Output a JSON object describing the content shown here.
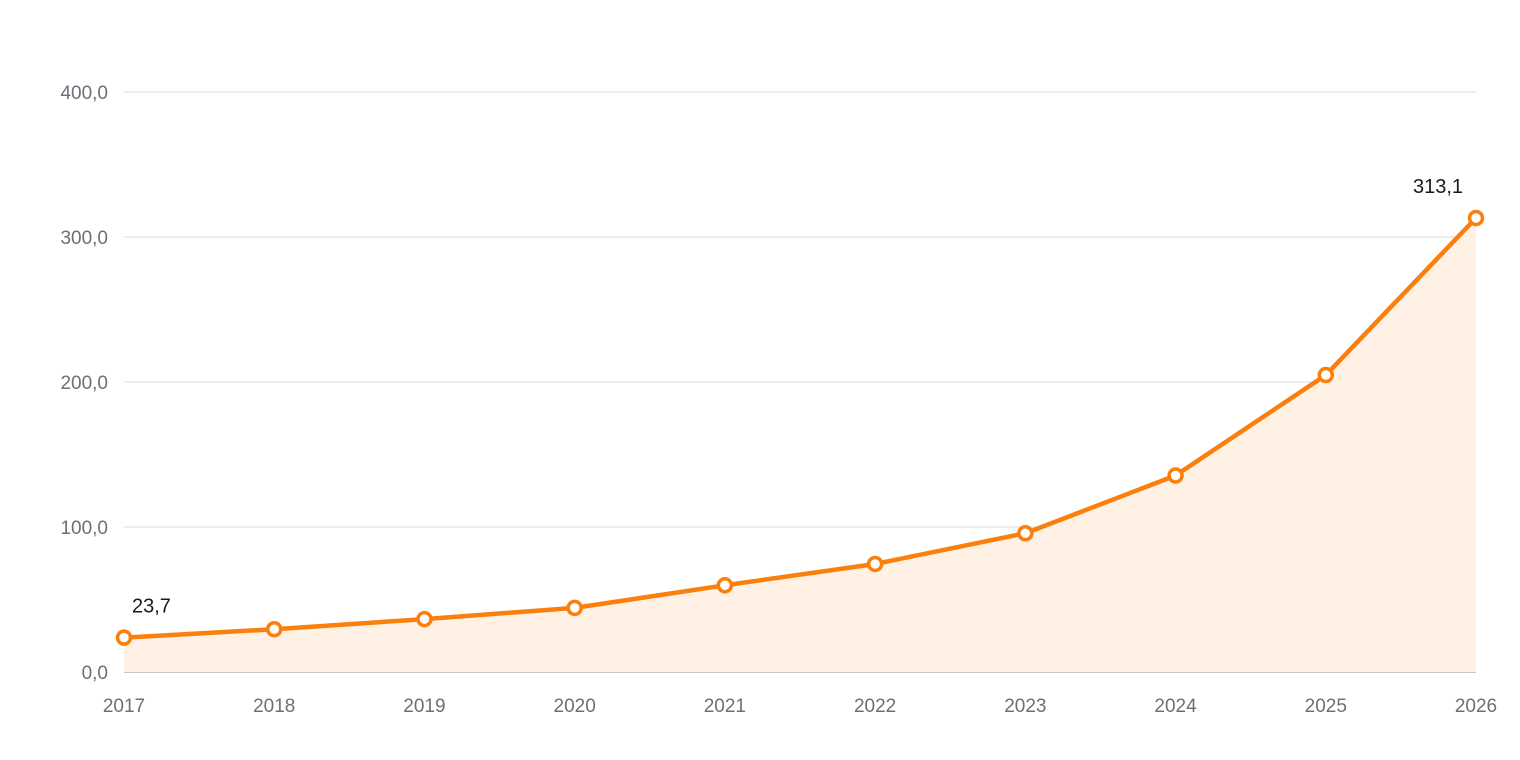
{
  "chart_data": {
    "type": "area",
    "title": "",
    "xlabel": "",
    "ylabel": "",
    "x": [
      "2017",
      "2018",
      "2019",
      "2020",
      "2021",
      "2022",
      "2023",
      "2024",
      "2025",
      "2026"
    ],
    "series": [
      {
        "values": [
          23.7,
          29.5,
          36.5,
          44.2,
          59.8,
          74.5,
          95.7,
          135.5,
          204.8,
          313.1
        ]
      }
    ],
    "ylim": [
      0,
      400
    ],
    "yticks": [
      "0,0",
      "100,0",
      "200,0",
      "300,0",
      "400,0"
    ],
    "data_labels": [
      {
        "index": 0,
        "text": "23,7"
      },
      {
        "index": 9,
        "text": "313,1"
      }
    ],
    "grid": true,
    "legend": "none",
    "colors": {
      "line": "#fb7f0c",
      "fill": "#fff1e4",
      "marker_fill": "#ffffff",
      "grid": "#e3e3e3",
      "axis": "#c8c8c8",
      "tick_text": "#6b7078",
      "label_text": "#1a1a1a"
    }
  }
}
